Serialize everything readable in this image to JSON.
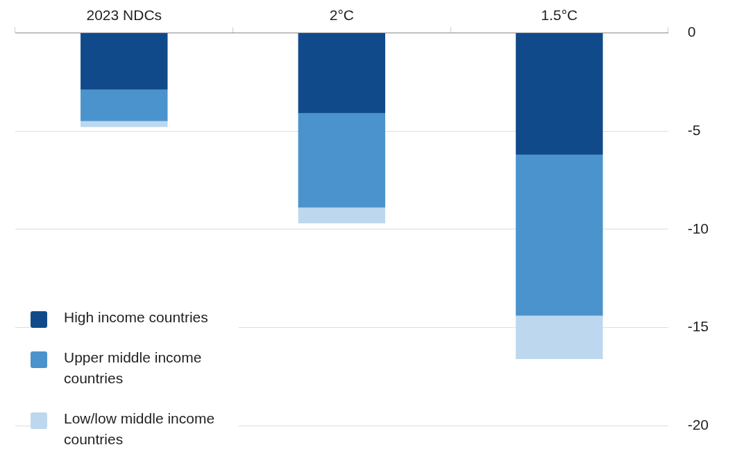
{
  "chart_data": {
    "type": "bar",
    "stacked": true,
    "categories": [
      "2023 NDCs",
      "2°C",
      "1.5°C"
    ],
    "series": [
      {
        "name": "High income countries",
        "color": "#114a8a",
        "values": [
          -2.9,
          -4.1,
          -6.2
        ]
      },
      {
        "name": "Upper middle income countries",
        "color": "#4a93cc",
        "values": [
          -1.6,
          -4.8,
          -8.2
        ]
      },
      {
        "name": "Low/low middle income countries",
        "color": "#bdd8ee",
        "values": [
          -0.3,
          -0.8,
          -2.2
        ]
      }
    ],
    "ylim": [
      -20,
      0
    ],
    "yticks": [
      0,
      -5,
      -10,
      -15,
      -20
    ],
    "grid": "y",
    "legend": "bottom left"
  }
}
